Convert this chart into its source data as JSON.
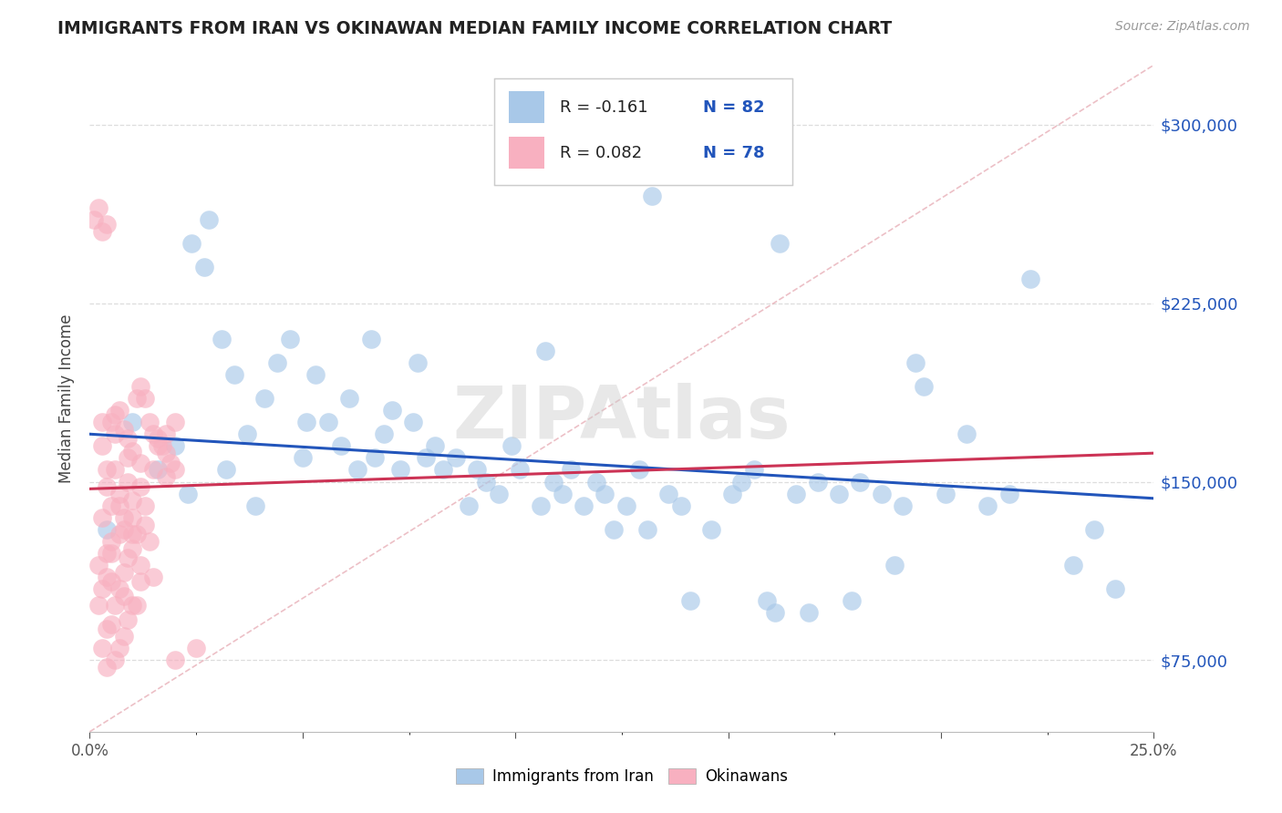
{
  "title": "IMMIGRANTS FROM IRAN VS OKINAWAN MEDIAN FAMILY INCOME CORRELATION CHART",
  "source": "Source: ZipAtlas.com",
  "ylabel": "Median Family Income",
  "yticks": [
    75000,
    150000,
    225000,
    300000
  ],
  "ytick_labels": [
    "$75,000",
    "$150,000",
    "$225,000",
    "$300,000"
  ],
  "xmin": 0.0,
  "xmax": 0.25,
  "ymin": 45000,
  "ymax": 325000,
  "blue_R": -0.161,
  "blue_N": 82,
  "pink_R": 0.082,
  "pink_N": 78,
  "blue_color": "#a8c8e8",
  "pink_color": "#f8b0c0",
  "blue_line_color": "#2255bb",
  "pink_line_color": "#cc3355",
  "diag_line_color": "#e8b0b8",
  "legend_blue_label": "Immigrants from Iran",
  "legend_pink_label": "Okinawans",
  "watermark": "ZIPAtlas",
  "blue_trend_y0": 170000,
  "blue_trend_y1": 143000,
  "pink_trend_y0": 147000,
  "pink_trend_y1": 162000,
  "blue_x": [
    0.004,
    0.01,
    0.016,
    0.02,
    0.024,
    0.027,
    0.028,
    0.031,
    0.034,
    0.037,
    0.041,
    0.044,
    0.047,
    0.05,
    0.053,
    0.056,
    0.059,
    0.061,
    0.063,
    0.066,
    0.069,
    0.071,
    0.073,
    0.076,
    0.079,
    0.081,
    0.083,
    0.086,
    0.089,
    0.091,
    0.093,
    0.096,
    0.099,
    0.101,
    0.106,
    0.109,
    0.111,
    0.113,
    0.116,
    0.119,
    0.121,
    0.123,
    0.126,
    0.129,
    0.131,
    0.136,
    0.139,
    0.141,
    0.146,
    0.151,
    0.153,
    0.156,
    0.159,
    0.161,
    0.166,
    0.169,
    0.171,
    0.176,
    0.179,
    0.181,
    0.186,
    0.189,
    0.191,
    0.196,
    0.201,
    0.206,
    0.211,
    0.216,
    0.221,
    0.231,
    0.236,
    0.241,
    0.194,
    0.162,
    0.132,
    0.107,
    0.077,
    0.051,
    0.032,
    0.023,
    0.039,
    0.067
  ],
  "blue_y": [
    130000,
    175000,
    155000,
    165000,
    250000,
    240000,
    260000,
    210000,
    195000,
    170000,
    185000,
    200000,
    210000,
    160000,
    195000,
    175000,
    165000,
    185000,
    155000,
    210000,
    170000,
    180000,
    155000,
    175000,
    160000,
    165000,
    155000,
    160000,
    140000,
    155000,
    150000,
    145000,
    165000,
    155000,
    140000,
    150000,
    145000,
    155000,
    140000,
    150000,
    145000,
    130000,
    140000,
    155000,
    130000,
    145000,
    140000,
    100000,
    130000,
    145000,
    150000,
    155000,
    100000,
    95000,
    145000,
    95000,
    150000,
    145000,
    100000,
    150000,
    145000,
    115000,
    140000,
    190000,
    145000,
    170000,
    140000,
    145000,
    235000,
    115000,
    130000,
    105000,
    200000,
    250000,
    270000,
    205000,
    200000,
    175000,
    155000,
    145000,
    140000,
    160000
  ],
  "pink_x": [
    0.001,
    0.002,
    0.003,
    0.004,
    0.005,
    0.006,
    0.007,
    0.008,
    0.009,
    0.01,
    0.011,
    0.012,
    0.013,
    0.014,
    0.015,
    0.016,
    0.017,
    0.018,
    0.019,
    0.02,
    0.003,
    0.006,
    0.009,
    0.012,
    0.015,
    0.018,
    0.003,
    0.006,
    0.009,
    0.012,
    0.004,
    0.007,
    0.01,
    0.013,
    0.004,
    0.007,
    0.01,
    0.013,
    0.005,
    0.008,
    0.011,
    0.014,
    0.003,
    0.007,
    0.01,
    0.005,
    0.009,
    0.004,
    0.008,
    0.012,
    0.002,
    0.005,
    0.008,
    0.011,
    0.004,
    0.007,
    0.01,
    0.003,
    0.006,
    0.009,
    0.002,
    0.005,
    0.008,
    0.004,
    0.007,
    0.003,
    0.006,
    0.004,
    0.016,
    0.018,
    0.02,
    0.008,
    0.01,
    0.005,
    0.012,
    0.015,
    0.025,
    0.02
  ],
  "pink_y": [
    260000,
    265000,
    255000,
    258000,
    175000,
    178000,
    180000,
    172000,
    168000,
    163000,
    185000,
    190000,
    185000,
    175000,
    170000,
    168000,
    165000,
    162000,
    158000,
    155000,
    175000,
    170000,
    160000,
    158000,
    155000,
    152000,
    165000,
    155000,
    150000,
    148000,
    155000,
    145000,
    142000,
    140000,
    148000,
    140000,
    135000,
    132000,
    140000,
    135000,
    128000,
    125000,
    135000,
    128000,
    122000,
    125000,
    118000,
    120000,
    112000,
    108000,
    115000,
    108000,
    102000,
    98000,
    110000,
    105000,
    98000,
    105000,
    98000,
    92000,
    98000,
    90000,
    85000,
    88000,
    80000,
    80000,
    75000,
    72000,
    165000,
    170000,
    175000,
    130000,
    128000,
    120000,
    115000,
    110000,
    80000,
    75000
  ]
}
